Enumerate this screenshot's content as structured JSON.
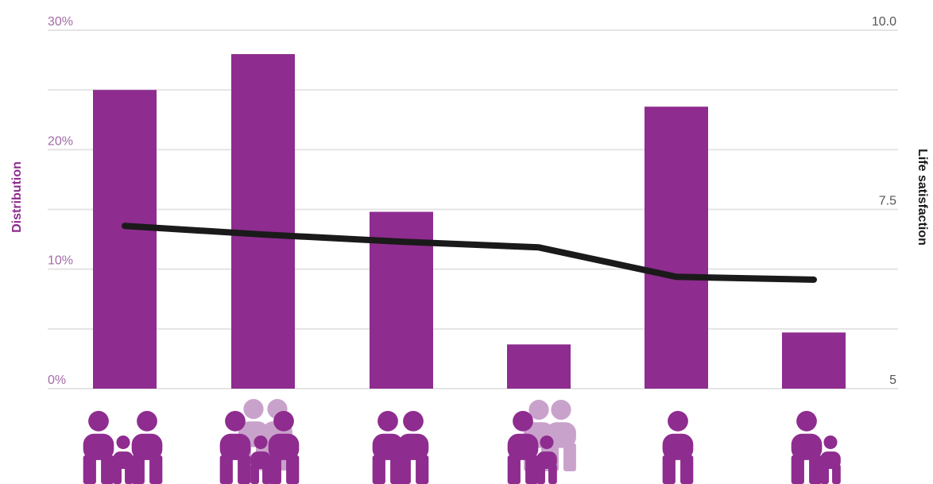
{
  "chart_data": {
    "type": "bar",
    "combined_with": "line",
    "categories": [
      "couple-with-child-icon",
      "couple-with-children-and-extended-family-icon",
      "couple-icon",
      "single-parent-with-child-and-extended-family-icon",
      "single-person-icon",
      "single-parent-with-child-icon"
    ],
    "series": [
      {
        "axis": "left",
        "type": "bar",
        "values": [
          25.0,
          28.0,
          14.8,
          3.7,
          23.6,
          4.7
        ]
      },
      {
        "axis": "right",
        "type": "line",
        "values": [
          7.27,
          7.15,
          7.05,
          6.97,
          6.56,
          6.52
        ]
      }
    ],
    "left_axis": {
      "label": "Distribution",
      "ticks": [
        "0%",
        "10%",
        "20%",
        "30%"
      ],
      "ylim": [
        0,
        30
      ]
    },
    "right_axis": {
      "label": "Life satisfaction",
      "ticks": [
        "5",
        "7.5",
        "10.0"
      ],
      "ylim": [
        5,
        10
      ]
    },
    "grid": true,
    "colors": {
      "bar": "#8e2c8f",
      "line": "#1a1a1a",
      "icon_primary": "#8e2c8f",
      "icon_secondary": "#c9a2cb"
    }
  }
}
